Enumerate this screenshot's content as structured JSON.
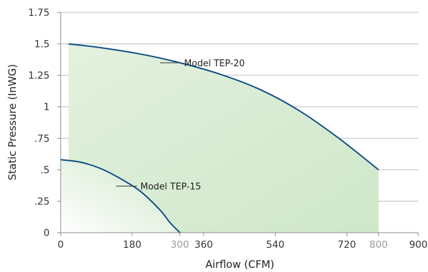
{
  "chart_data": {
    "type": "area",
    "xlabel": "Airflow (CFM)",
    "ylabel": "Static Pressure (InWG)",
    "xlim": [
      0,
      900
    ],
    "ylim": [
      0,
      1.75
    ],
    "x_ticks": [
      {
        "value": 0,
        "label": "0",
        "style": "normal"
      },
      {
        "value": 180,
        "label": "180",
        "style": "normal"
      },
      {
        "value": 300,
        "label": "300",
        "style": "gray"
      },
      {
        "value": 360,
        "label": "360",
        "style": "normal"
      },
      {
        "value": 540,
        "label": "540",
        "style": "normal"
      },
      {
        "value": 720,
        "label": "720",
        "style": "normal"
      },
      {
        "value": 800,
        "label": "800",
        "style": "gray"
      },
      {
        "value": 900,
        "label": "900",
        "style": "normal"
      }
    ],
    "y_ticks": [
      {
        "value": 0,
        "label": "0"
      },
      {
        "value": 0.25,
        "label": ".25"
      },
      {
        "value": 0.5,
        "label": ".5"
      },
      {
        "value": 0.75,
        "label": ".75"
      },
      {
        "value": 1,
        "label": "1"
      },
      {
        "value": 1.25,
        "label": "1.25"
      },
      {
        "value": 1.5,
        "label": "1.5"
      },
      {
        "value": 1.75,
        "label": "1.75"
      }
    ],
    "grid": "horizontal",
    "series": [
      {
        "name": "Model TEP-20",
        "x": [
          20,
          100,
          200,
          300,
          400,
          500,
          600,
          700,
          800
        ],
        "y": [
          1.5,
          1.47,
          1.42,
          1.35,
          1.26,
          1.14,
          0.97,
          0.75,
          0.5
        ],
        "label_anchor": {
          "x": 340,
          "y": 1.35
        }
      },
      {
        "name": "Model TEP-15",
        "x": [
          0,
          50,
          100,
          150,
          200,
          250,
          275,
          300
        ],
        "y": [
          0.58,
          0.56,
          0.51,
          0.43,
          0.33,
          0.18,
          0.08,
          0
        ],
        "label_anchor": {
          "x": 230,
          "y": 0.37
        }
      }
    ],
    "colors": {
      "line": "#0e4f86",
      "fill_strong": "#cfe7c9",
      "fill_light": "#ffffff",
      "grid": "#bdbdbd",
      "tick": "#333333",
      "tick_gray": "#9a9a9a"
    }
  }
}
